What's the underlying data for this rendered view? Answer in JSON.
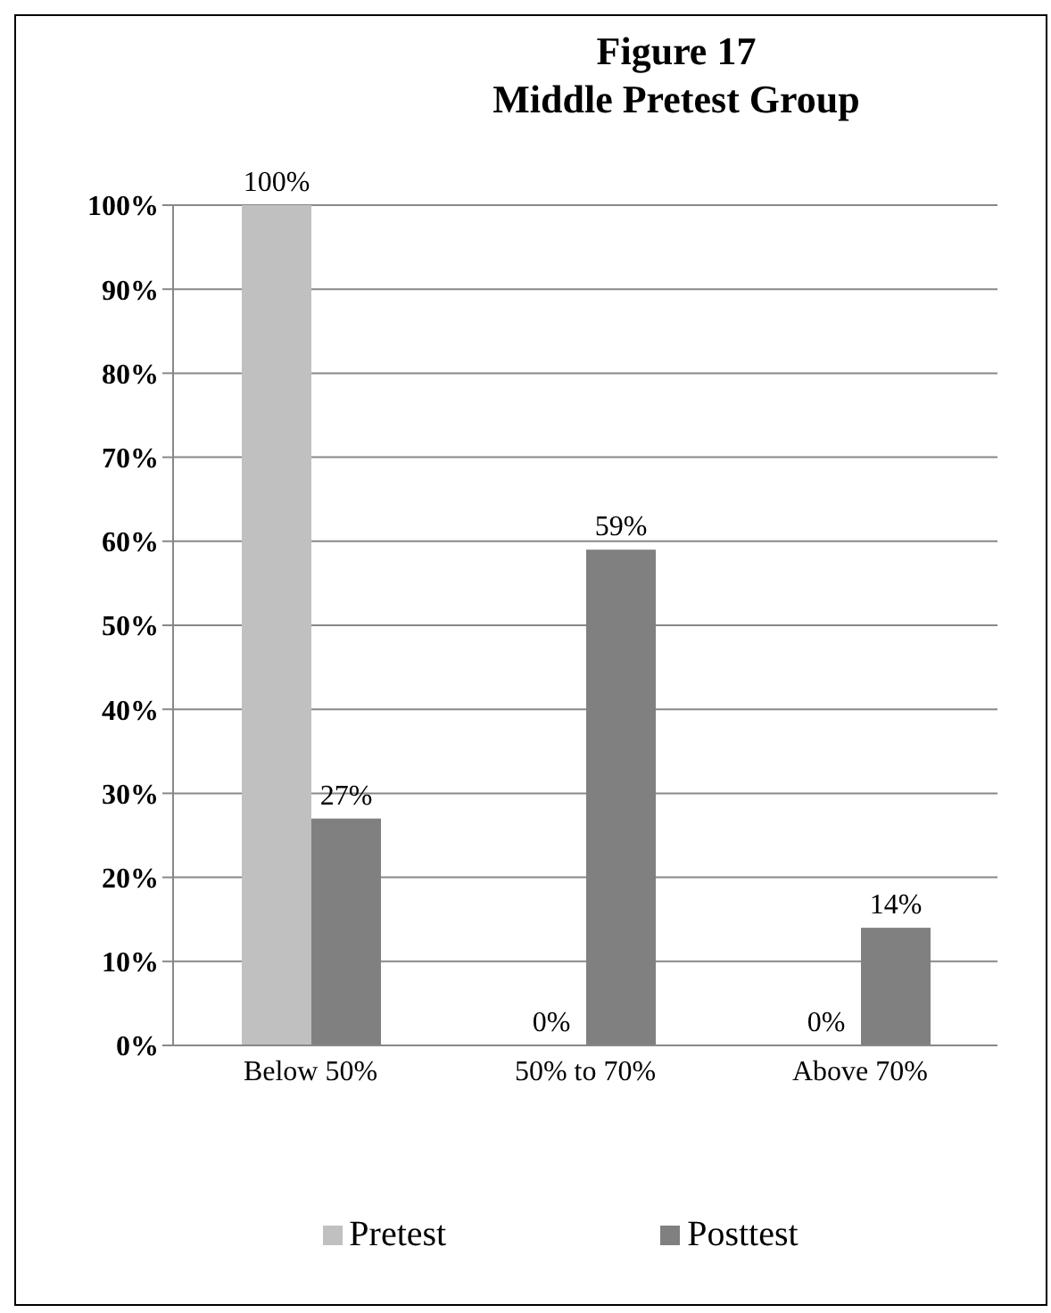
{
  "chart_data": {
    "type": "bar",
    "title": "Figure 17",
    "subtitle": "Middle Pretest Group",
    "categories": [
      "Below 50%",
      "50% to 70%",
      "Above 70%"
    ],
    "series": [
      {
        "name": "Pretest",
        "color": "#c0c0c0",
        "values": [
          100,
          0,
          0
        ]
      },
      {
        "name": "Posttest",
        "color": "#808080",
        "values": [
          27,
          59,
          14
        ]
      }
    ],
    "ylim": [
      0,
      100
    ],
    "yticks": [
      {
        "value": 0,
        "label": "0%"
      },
      {
        "value": 10,
        "label": "10%"
      },
      {
        "value": 20,
        "label": "20%"
      },
      {
        "value": 30,
        "label": "30%"
      },
      {
        "value": 40,
        "label": "40%"
      },
      {
        "value": 50,
        "label": "50%"
      },
      {
        "value": 60,
        "label": "60%"
      },
      {
        "value": 70,
        "label": "70%"
      },
      {
        "value": 80,
        "label": "80%"
      },
      {
        "value": 90,
        "label": "90%"
      },
      {
        "value": 100,
        "label": "100%"
      }
    ],
    "value_labels": [
      [
        "100%",
        "0%",
        "0%"
      ],
      [
        "27%",
        "59%",
        "14%"
      ]
    ],
    "grid": "y",
    "legend": "bottom"
  }
}
